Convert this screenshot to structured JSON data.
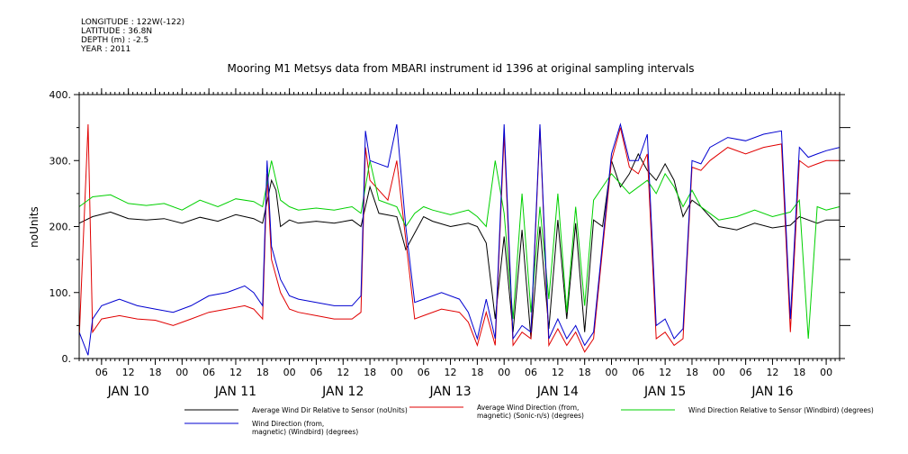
{
  "meta": {
    "longitude": "LONGITUDE : 122W(-122)",
    "latitude": "LATITUDE : 36.8N",
    "depth": "DEPTH (m) : -2.5",
    "year": "YEAR : 2011"
  },
  "chart_data": {
    "type": "line",
    "title": "Mooring M1 Metsys data from MBARI instrument id 1396 at original sampling intervals",
    "xlabel": "",
    "ylabel": "noUnits",
    "ylim": [
      0,
      400
    ],
    "yticks": [
      0,
      100,
      200,
      300,
      400
    ],
    "ytick_labels": [
      "0.",
      "100.",
      "200.",
      "300.",
      "400."
    ],
    "xlim_hours": [
      1,
      171
    ],
    "xtick_hours": [
      6,
      12,
      18,
      24,
      30,
      36,
      42,
      48,
      54,
      60,
      66,
      72,
      78,
      84,
      90,
      96,
      102,
      108,
      114,
      120,
      126,
      132,
      138,
      144,
      150,
      156,
      162,
      168
    ],
    "xtick_labels": [
      "06",
      "12",
      "18",
      "00",
      "06",
      "12",
      "18",
      "00",
      "06",
      "12",
      "18",
      "00",
      "06",
      "12",
      "18",
      "00",
      "06",
      "12",
      "18",
      "00",
      "06",
      "12",
      "18",
      "00",
      "06",
      "12",
      "18",
      "00"
    ],
    "day_labels": [
      {
        "label": "JAN 10",
        "hour": 12
      },
      {
        "label": "JAN 11",
        "hour": 36
      },
      {
        "label": "JAN 12",
        "hour": 60
      },
      {
        "label": "JAN 13",
        "hour": 84
      },
      {
        "label": "JAN 14",
        "hour": 108
      },
      {
        "label": "JAN 15",
        "hour": 132
      },
      {
        "label": "JAN 16",
        "hour": 156
      }
    ],
    "grid": false,
    "legend_position": "bottom",
    "series": [
      {
        "name": "Average Wind Dir Relative to Sensor (noUnits)",
        "color": "#000000",
        "x": [
          1,
          4,
          8,
          12,
          16,
          20,
          24,
          28,
          32,
          36,
          40,
          42,
          44,
          45,
          46,
          48,
          50,
          54,
          58,
          62,
          64,
          66,
          68,
          72,
          74,
          76,
          78,
          80,
          84,
          88,
          90,
          92,
          94,
          96,
          98,
          100,
          102,
          104,
          106,
          108,
          110,
          112,
          114,
          116,
          118,
          120,
          122,
          124,
          126,
          128,
          130,
          132,
          134,
          136,
          138,
          140,
          144,
          148,
          152,
          156,
          160,
          162,
          164,
          166,
          168,
          171
        ],
        "y": [
          205,
          215,
          222,
          212,
          210,
          212,
          205,
          214,
          208,
          218,
          212,
          205,
          270,
          255,
          200,
          210,
          205,
          208,
          205,
          210,
          200,
          260,
          220,
          215,
          165,
          190,
          215,
          208,
          200,
          205,
          200,
          175,
          60,
          185,
          40,
          195,
          30,
          200,
          45,
          210,
          60,
          205,
          40,
          210,
          200,
          300,
          260,
          280,
          310,
          285,
          270,
          295,
          270,
          215,
          240,
          230,
          200,
          195,
          205,
          198,
          202,
          215,
          210,
          205,
          210,
          210
        ]
      },
      {
        "name": "Average Wind Direction (from, magnetic) (Sonic-n/s) (degrees)",
        "color": "#e00000",
        "x": [
          1,
          3,
          4,
          6,
          10,
          14,
          18,
          22,
          26,
          30,
          34,
          38,
          40,
          42,
          43,
          44,
          46,
          48,
          50,
          54,
          58,
          62,
          64,
          65,
          66,
          70,
          72,
          74,
          76,
          78,
          82,
          86,
          88,
          90,
          92,
          94,
          96,
          98,
          100,
          102,
          104,
          106,
          108,
          110,
          112,
          114,
          116,
          120,
          122,
          124,
          126,
          128,
          130,
          132,
          134,
          136,
          138,
          140,
          142,
          146,
          150,
          154,
          158,
          160,
          162,
          164,
          166,
          168,
          171
        ],
        "y": [
          30,
          355,
          40,
          60,
          65,
          60,
          58,
          50,
          60,
          70,
          75,
          80,
          75,
          60,
          280,
          150,
          100,
          75,
          70,
          65,
          60,
          60,
          70,
          320,
          270,
          240,
          300,
          180,
          60,
          65,
          75,
          70,
          55,
          20,
          70,
          20,
          340,
          20,
          40,
          30,
          350,
          20,
          45,
          20,
          40,
          10,
          30,
          300,
          350,
          290,
          280,
          310,
          30,
          40,
          20,
          30,
          290,
          285,
          300,
          320,
          310,
          320,
          325,
          40,
          300,
          290,
          295,
          300,
          300
        ]
      },
      {
        "name": "Wind Direction Relative to Sensor (Windbird) (degrees)",
        "color": "#00d000",
        "x": [
          1,
          4,
          8,
          12,
          16,
          20,
          24,
          28,
          32,
          36,
          40,
          42,
          44,
          45,
          46,
          48,
          50,
          54,
          58,
          62,
          64,
          66,
          68,
          72,
          74,
          76,
          78,
          80,
          84,
          88,
          90,
          92,
          94,
          96,
          98,
          100,
          102,
          104,
          106,
          108,
          110,
          112,
          114,
          116,
          118,
          120,
          124,
          128,
          130,
          132,
          134,
          136,
          138,
          140,
          144,
          148,
          152,
          156,
          160,
          162,
          164,
          166,
          168,
          171
        ],
        "y": [
          230,
          245,
          248,
          235,
          232,
          235,
          225,
          240,
          230,
          242,
          238,
          230,
          300,
          270,
          240,
          230,
          225,
          228,
          225,
          230,
          220,
          300,
          240,
          230,
          200,
          220,
          230,
          225,
          218,
          225,
          215,
          200,
          300,
          220,
          60,
          250,
          70,
          230,
          90,
          250,
          70,
          230,
          80,
          240,
          260,
          280,
          250,
          270,
          250,
          280,
          260,
          230,
          255,
          230,
          210,
          215,
          225,
          215,
          222,
          240,
          30,
          230,
          225,
          230
        ]
      },
      {
        "name": "Wind Direction (from, magnetic) (Windbird) (degrees)",
        "color": "#0000d0",
        "x": [
          1,
          3,
          4,
          6,
          10,
          14,
          18,
          22,
          26,
          30,
          34,
          38,
          40,
          42,
          43,
          44,
          46,
          48,
          50,
          54,
          58,
          62,
          64,
          65,
          66,
          70,
          72,
          74,
          76,
          78,
          82,
          86,
          88,
          90,
          92,
          94,
          96,
          98,
          100,
          102,
          104,
          106,
          108,
          110,
          112,
          114,
          116,
          120,
          122,
          124,
          126,
          128,
          130,
          132,
          134,
          136,
          138,
          140,
          142,
          146,
          150,
          154,
          158,
          160,
          162,
          164,
          166,
          168,
          171
        ],
        "y": [
          40,
          5,
          60,
          80,
          90,
          80,
          75,
          70,
          80,
          95,
          100,
          110,
          100,
          80,
          300,
          170,
          120,
          95,
          90,
          85,
          80,
          80,
          95,
          345,
          300,
          290,
          355,
          200,
          85,
          90,
          100,
          90,
          70,
          30,
          90,
          30,
          355,
          30,
          50,
          40,
          355,
          30,
          60,
          30,
          50,
          20,
          40,
          310,
          355,
          300,
          300,
          340,
          50,
          60,
          30,
          45,
          300,
          295,
          320,
          335,
          330,
          340,
          345,
          60,
          320,
          305,
          310,
          315,
          320
        ]
      }
    ]
  }
}
